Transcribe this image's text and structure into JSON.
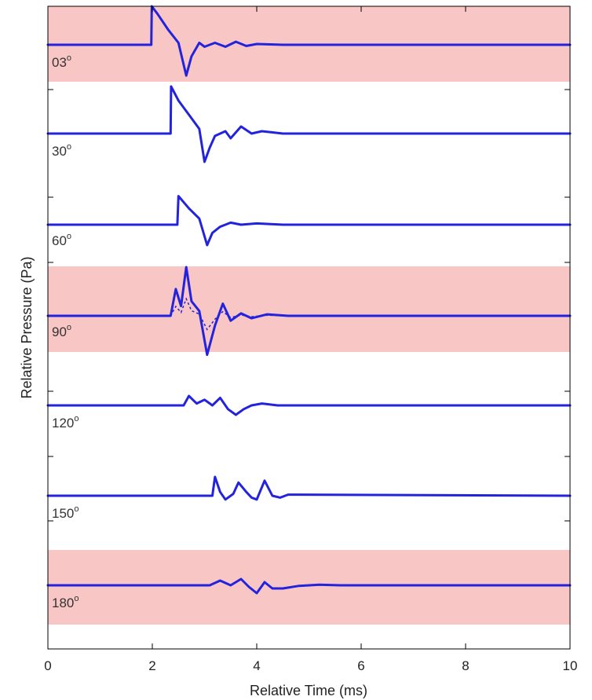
{
  "chart_data": {
    "type": "line",
    "xlabel": "Relative Time (ms)",
    "ylabel": "Relative Pressure (Pa)",
    "xlim": [
      0,
      10
    ],
    "x_ticks": [
      "0",
      "2",
      "4",
      "6",
      "8",
      "10"
    ],
    "grid": false,
    "highlight_color": "#f9c6c6",
    "line_color": "#2323dd",
    "series": [
      {
        "angle": "03",
        "highlighted": true,
        "points": [
          [
            0,
            0
          ],
          [
            1.98,
            0
          ],
          [
            1.99,
            1.0
          ],
          [
            2.1,
            0.8
          ],
          [
            2.3,
            0.4
          ],
          [
            2.5,
            0.05
          ],
          [
            2.65,
            -0.8
          ],
          [
            2.75,
            -0.3
          ],
          [
            2.9,
            0.05
          ],
          [
            3.0,
            -0.05
          ],
          [
            3.2,
            0.05
          ],
          [
            3.4,
            -0.05
          ],
          [
            3.6,
            0.08
          ],
          [
            3.8,
            -0.03
          ],
          [
            4.0,
            0.02
          ],
          [
            4.5,
            0.0
          ],
          [
            10,
            0
          ]
        ]
      },
      {
        "angle": "30",
        "highlighted": false,
        "points": [
          [
            0,
            0
          ],
          [
            2.35,
            0
          ],
          [
            2.36,
            1.0
          ],
          [
            2.5,
            0.7
          ],
          [
            2.7,
            0.4
          ],
          [
            2.9,
            0.1
          ],
          [
            3.0,
            -0.6
          ],
          [
            3.1,
            -0.3
          ],
          [
            3.2,
            -0.05
          ],
          [
            3.4,
            0.05
          ],
          [
            3.5,
            -0.1
          ],
          [
            3.7,
            0.15
          ],
          [
            3.9,
            0.0
          ],
          [
            4.1,
            0.05
          ],
          [
            4.5,
            0.0
          ],
          [
            10,
            0
          ]
        ]
      },
      {
        "angle": "60",
        "highlighted": false,
        "points": [
          [
            0,
            0
          ],
          [
            2.48,
            0
          ],
          [
            2.5,
            0.7
          ],
          [
            2.7,
            0.4
          ],
          [
            2.9,
            0.15
          ],
          [
            3.05,
            -0.5
          ],
          [
            3.15,
            -0.2
          ],
          [
            3.3,
            -0.05
          ],
          [
            3.5,
            0.05
          ],
          [
            3.7,
            0.0
          ],
          [
            4.0,
            0.03
          ],
          [
            4.5,
            0.0
          ],
          [
            10,
            0
          ]
        ]
      },
      {
        "angle": "90",
        "highlighted": true,
        "points": [
          [
            0,
            0
          ],
          [
            2.35,
            0
          ],
          [
            2.45,
            0.55
          ],
          [
            2.55,
            0.2
          ],
          [
            2.65,
            1.0
          ],
          [
            2.75,
            0.3
          ],
          [
            2.9,
            0.1
          ],
          [
            3.05,
            -0.8
          ],
          [
            3.2,
            -0.2
          ],
          [
            3.35,
            0.25
          ],
          [
            3.5,
            -0.1
          ],
          [
            3.7,
            0.05
          ],
          [
            3.9,
            -0.05
          ],
          [
            4.2,
            0.03
          ],
          [
            4.6,
            0.0
          ],
          [
            10,
            0
          ]
        ]
      },
      {
        "angle": "120",
        "highlighted": false,
        "points": [
          [
            0,
            0
          ],
          [
            2.6,
            0
          ],
          [
            2.7,
            0.25
          ],
          [
            2.85,
            0.05
          ],
          [
            3.0,
            0.15
          ],
          [
            3.15,
            0.0
          ],
          [
            3.3,
            0.2
          ],
          [
            3.45,
            -0.1
          ],
          [
            3.6,
            -0.25
          ],
          [
            3.75,
            -0.1
          ],
          [
            3.9,
            0.0
          ],
          [
            4.1,
            0.05
          ],
          [
            4.4,
            0.0
          ],
          [
            10,
            0
          ]
        ]
      },
      {
        "angle": "150",
        "highlighted": false,
        "points": [
          [
            0,
            0
          ],
          [
            3.15,
            0
          ],
          [
            3.2,
            0.5
          ],
          [
            3.3,
            0.1
          ],
          [
            3.4,
            -0.1
          ],
          [
            3.55,
            0.05
          ],
          [
            3.65,
            0.35
          ],
          [
            3.8,
            0.1
          ],
          [
            3.9,
            -0.05
          ],
          [
            4.0,
            -0.1
          ],
          [
            4.15,
            0.4
          ],
          [
            4.3,
            0.0
          ],
          [
            4.45,
            -0.05
          ],
          [
            4.6,
            0.03
          ],
          [
            10,
            0
          ]
        ]
      },
      {
        "angle": "180",
        "highlighted": true,
        "points": [
          [
            0,
            0
          ],
          [
            3.1,
            0
          ],
          [
            3.3,
            0.15
          ],
          [
            3.5,
            0.0
          ],
          [
            3.7,
            0.2
          ],
          [
            3.85,
            -0.05
          ],
          [
            4.0,
            -0.25
          ],
          [
            4.15,
            0.1
          ],
          [
            4.3,
            -0.1
          ],
          [
            4.5,
            -0.1
          ],
          [
            4.8,
            -0.02
          ],
          [
            5.2,
            0.02
          ],
          [
            5.6,
            0.0
          ],
          [
            10,
            0
          ]
        ]
      }
    ]
  }
}
